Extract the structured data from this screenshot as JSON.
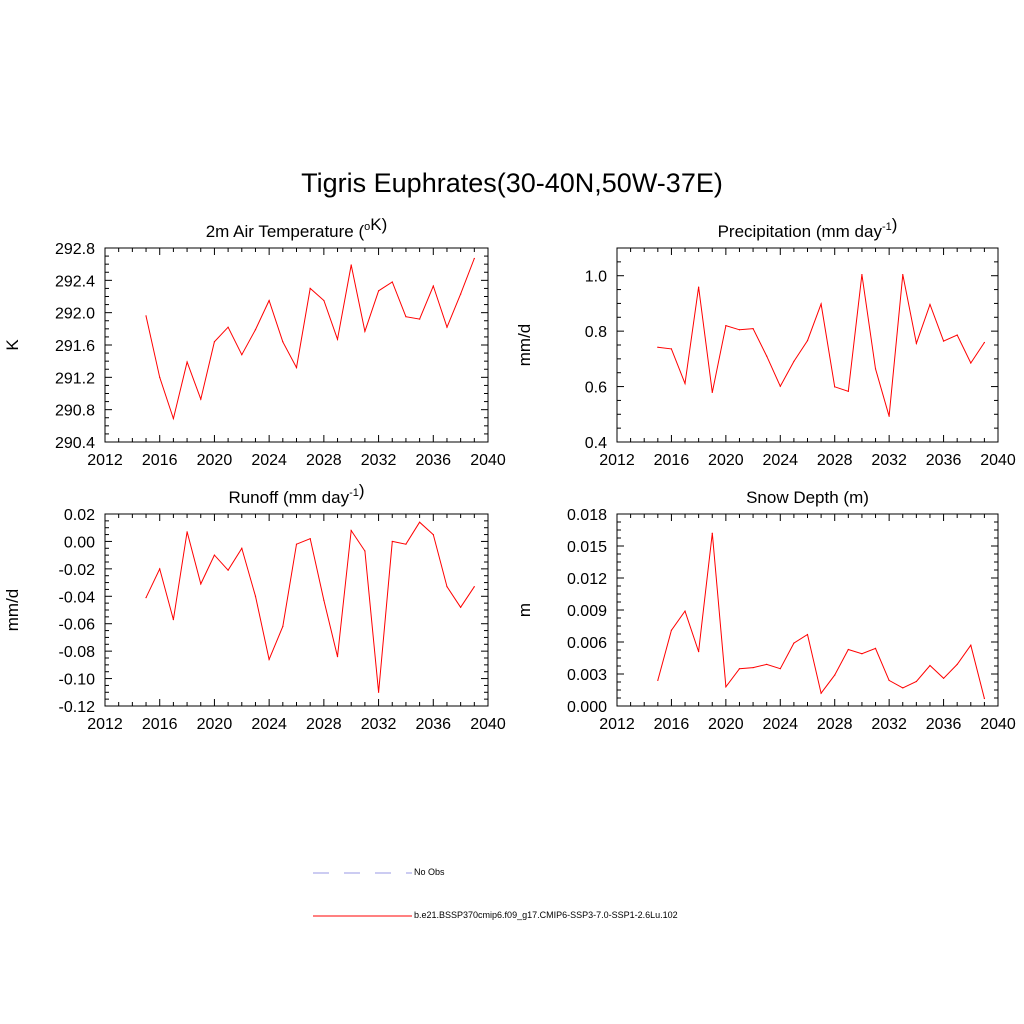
{
  "title": "Tigris Euphrates(30-40N,50W-37E)",
  "colors": {
    "model": "#ff0000",
    "obs": "#9a9ae6",
    "axis": "#000000"
  },
  "legend": {
    "obs_label": "No Obs",
    "model_label": "b.e21.BSSP370cmip6.f09_g17.CMIP6-SSP3-7.0-SSP1-2.6Lu.102"
  },
  "chart_data": [
    {
      "type": "line",
      "title_main": "2m Air Temperature (",
      "title_sup_pre": "o",
      "title_mid": "K",
      "title_sup": "",
      "title_tail": ")",
      "ylabel": "K",
      "xlim": [
        2012,
        2040
      ],
      "xticks": [
        2012,
        2016,
        2020,
        2024,
        2028,
        2032,
        2036,
        2040
      ],
      "ylim": [
        290.4,
        292.8
      ],
      "yticks": [
        "290.4",
        "290.8",
        "291.2",
        "291.6",
        "292.0",
        "292.4",
        "292.8"
      ],
      "series": [
        {
          "x": [
            2015,
            2016,
            2017,
            2018,
            2019,
            2020,
            2021,
            2022,
            2023,
            2024,
            2025,
            2026,
            2027,
            2028,
            2029,
            2030,
            2031,
            2032,
            2033,
            2034,
            2035,
            2036,
            2037,
            2038,
            2039
          ],
          "values": [
            291.96,
            291.2,
            290.69,
            291.39,
            290.93,
            291.64,
            291.82,
            291.48,
            291.79,
            292.15,
            291.64,
            291.32,
            292.3,
            292.15,
            291.67,
            292.59,
            291.77,
            292.27,
            292.38,
            291.95,
            291.92,
            292.33,
            291.82,
            292.23,
            292.67
          ]
        }
      ]
    },
    {
      "type": "line",
      "title_main": "Precipitation (mm day",
      "title_sup_pre": "",
      "title_mid": "",
      "title_sup": "-1",
      "title_tail": ")",
      "ylabel": "mm/d",
      "xlim": [
        2012,
        2040
      ],
      "xticks": [
        2012,
        2016,
        2020,
        2024,
        2028,
        2032,
        2036,
        2040
      ],
      "ylim": [
        0.4,
        1.1
      ],
      "yticks": [
        "0.4",
        "0.6",
        "0.8",
        "1.0"
      ],
      "series": [
        {
          "x": [
            2015,
            2016,
            2017,
            2018,
            2019,
            2020,
            2021,
            2022,
            2023,
            2024,
            2025,
            2026,
            2027,
            2028,
            2029,
            2030,
            2031,
            2032,
            2033,
            2034,
            2035,
            2036,
            2037,
            2038,
            2039
          ],
          "values": [
            0.742,
            0.736,
            0.611,
            0.959,
            0.579,
            0.82,
            0.805,
            0.809,
            0.71,
            0.601,
            0.691,
            0.766,
            0.898,
            0.599,
            0.583,
            1.004,
            0.664,
            0.493,
            1.004,
            0.756,
            0.896,
            0.764,
            0.786,
            0.685,
            0.759
          ]
        }
      ]
    },
    {
      "type": "line",
      "title_main": "Runoff (mm day",
      "title_sup_pre": "",
      "title_mid": "",
      "title_sup": "-1",
      "title_tail": ")",
      "ylabel": "mm/d",
      "xlim": [
        2012,
        2040
      ],
      "xticks": [
        2012,
        2016,
        2020,
        2024,
        2028,
        2032,
        2036,
        2040
      ],
      "ylim": [
        -0.12,
        0.02
      ],
      "yticks": [
        "-0.12",
        "-0.10",
        "-0.08",
        "-0.06",
        "-0.04",
        "-0.02",
        "0.00",
        "0.02"
      ],
      "series": [
        {
          "x": [
            2015,
            2016,
            2017,
            2018,
            2019,
            2020,
            2021,
            2022,
            2023,
            2024,
            2025,
            2026,
            2027,
            2028,
            2029,
            2030,
            2031,
            2032,
            2033,
            2034,
            2035,
            2036,
            2037,
            2038,
            2039
          ],
          "values": [
            -0.041,
            -0.02,
            -0.057,
            0.007,
            -0.031,
            -0.01,
            -0.021,
            -0.005,
            -0.04,
            -0.086,
            -0.062,
            -0.002,
            0.002,
            -0.043,
            -0.084,
            0.008,
            -0.007,
            -0.11,
            0.0,
            -0.002,
            0.014,
            0.005,
            -0.033,
            -0.048,
            -0.033
          ]
        }
      ]
    },
    {
      "type": "line",
      "title_main": "Snow Depth (m)",
      "title_sup_pre": "",
      "title_mid": "",
      "title_sup": "",
      "title_tail": "",
      "ylabel": "m",
      "xlim": [
        2012,
        2040
      ],
      "xticks": [
        2012,
        2016,
        2020,
        2024,
        2028,
        2032,
        2036,
        2040
      ],
      "ylim": [
        0.0,
        0.018
      ],
      "yticks": [
        "0.000",
        "0.003",
        "0.006",
        "0.009",
        "0.012",
        "0.015",
        "0.018"
      ],
      "series": [
        {
          "x": [
            2015,
            2016,
            2017,
            2018,
            2019,
            2020,
            2021,
            2022,
            2023,
            2024,
            2025,
            2026,
            2027,
            2028,
            2029,
            2030,
            2031,
            2032,
            2033,
            2034,
            2035,
            2036,
            2037,
            2038,
            2039
          ],
          "values": [
            0.0024,
            0.0071,
            0.0089,
            0.0051,
            0.0162,
            0.0018,
            0.0035,
            0.0036,
            0.0039,
            0.0035,
            0.0059,
            0.0067,
            0.0012,
            0.0029,
            0.0053,
            0.0049,
            0.0054,
            0.0024,
            0.0017,
            0.0023,
            0.0038,
            0.0026,
            0.0039,
            0.0057,
            0.0007
          ]
        }
      ]
    }
  ]
}
